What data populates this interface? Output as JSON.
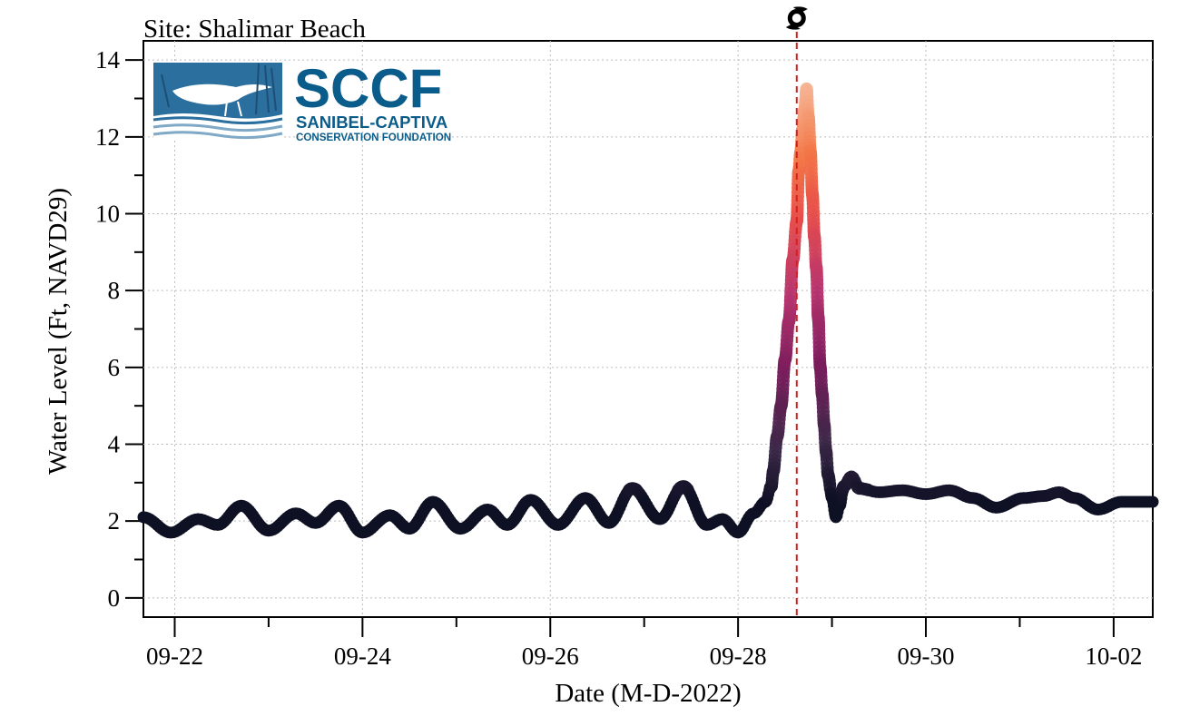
{
  "chart_data": {
    "type": "scatter",
    "title": "Site: Shalimar Beach",
    "xlabel": "Date (M-D-2022)",
    "ylabel": "Water Level (Ft, NAVD29)",
    "xlim": [
      "2022-09-21T16:00",
      "2022-10-02T10:00"
    ],
    "ylim": [
      -0.5,
      14.5
    ],
    "x_tick_labels": [
      "09-22",
      "09-24",
      "09-26",
      "09-28",
      "09-30",
      "10-02"
    ],
    "y_tick_labels": [
      "0",
      "2",
      "4",
      "6",
      "8",
      "10",
      "12",
      "14"
    ],
    "grid": true,
    "color_scale": "water level (dark navy low → purple → pink → orange → peach high)",
    "event_marker": {
      "datetime": "2022-09-28T15:00",
      "style": "red dashed vertical line",
      "icon": "hurricane-icon"
    },
    "series": [
      {
        "points": [
          [
            "2022-09-21T16:00",
            2.1
          ],
          [
            "2022-09-21T23:00",
            1.7
          ],
          [
            "2022-09-22T06:00",
            2.05
          ],
          [
            "2022-09-22T11:00",
            1.9
          ],
          [
            "2022-09-22T17:00",
            2.4
          ],
          [
            "2022-09-23T00:00",
            1.75
          ],
          [
            "2022-09-23T07:00",
            2.2
          ],
          [
            "2022-09-23T12:00",
            1.95
          ],
          [
            "2022-09-23T18:00",
            2.4
          ],
          [
            "2022-09-24T00:00",
            1.7
          ],
          [
            "2022-09-24T07:00",
            2.15
          ],
          [
            "2022-09-24T12:00",
            1.8
          ],
          [
            "2022-09-24T18:00",
            2.5
          ],
          [
            "2022-09-25T01:00",
            1.8
          ],
          [
            "2022-09-25T08:00",
            2.3
          ],
          [
            "2022-09-25T13:00",
            1.9
          ],
          [
            "2022-09-25T19:00",
            2.55
          ],
          [
            "2022-09-26T02:00",
            1.9
          ],
          [
            "2022-09-26T09:00",
            2.6
          ],
          [
            "2022-09-26T15:00",
            1.95
          ],
          [
            "2022-09-26T21:00",
            2.85
          ],
          [
            "2022-09-27T04:00",
            2.05
          ],
          [
            "2022-09-27T10:00",
            2.9
          ],
          [
            "2022-09-27T16:00",
            1.9
          ],
          [
            "2022-09-27T20:00",
            2.05
          ],
          [
            "2022-09-28T00:00",
            1.7
          ],
          [
            "2022-09-28T04:00",
            2.2
          ],
          [
            "2022-09-28T07:00",
            2.5
          ],
          [
            "2022-09-28T08:30",
            2.9
          ],
          [
            "2022-09-28T09:00",
            3.3
          ],
          [
            "2022-09-28T10:00",
            4.2
          ],
          [
            "2022-09-28T11:00",
            5.0
          ],
          [
            "2022-09-28T12:00",
            6.2
          ],
          [
            "2022-09-28T13:00",
            7.2
          ],
          [
            "2022-09-28T14:00",
            8.8
          ],
          [
            "2022-09-28T15:00",
            9.8
          ],
          [
            "2022-09-28T15:30",
            11.1
          ],
          [
            "2022-09-28T16:00",
            11.6
          ],
          [
            "2022-09-28T16:30",
            12.2
          ],
          [
            "2022-09-28T17:00",
            12.7
          ],
          [
            "2022-09-28T17:30",
            13.25
          ],
          [
            "2022-09-28T18:00",
            12.5
          ],
          [
            "2022-09-28T18:30",
            11.6
          ],
          [
            "2022-09-28T19:00",
            10.5
          ],
          [
            "2022-09-28T19:30",
            9.4
          ],
          [
            "2022-09-28T20:00",
            8.6
          ],
          [
            "2022-09-28T20:30",
            7.3
          ],
          [
            "2022-09-28T21:00",
            6.0
          ],
          [
            "2022-09-28T21:30",
            5.3
          ],
          [
            "2022-09-28T22:00",
            4.5
          ],
          [
            "2022-09-28T22:30",
            3.8
          ],
          [
            "2022-09-28T23:00",
            3.2
          ],
          [
            "2022-09-29T00:00",
            2.6
          ],
          [
            "2022-09-29T01:00",
            2.1
          ],
          [
            "2022-09-29T02:00",
            2.4
          ],
          [
            "2022-09-29T03:00",
            2.9
          ],
          [
            "2022-09-29T05:00",
            3.15
          ],
          [
            "2022-09-29T07:00",
            2.85
          ],
          [
            "2022-09-29T12:00",
            2.75
          ],
          [
            "2022-09-29T18:00",
            2.8
          ],
          [
            "2022-09-30T00:00",
            2.7
          ],
          [
            "2022-09-30T06:00",
            2.8
          ],
          [
            "2022-09-30T12:00",
            2.6
          ],
          [
            "2022-09-30T18:00",
            2.35
          ],
          [
            "2022-10-01T01:00",
            2.6
          ],
          [
            "2022-10-01T06:00",
            2.65
          ],
          [
            "2022-10-01T10:00",
            2.75
          ],
          [
            "2022-10-01T14:00",
            2.6
          ],
          [
            "2022-10-01T20:00",
            2.3
          ],
          [
            "2022-10-02T02:00",
            2.5
          ],
          [
            "2022-10-02T10:00",
            2.5
          ]
        ]
      }
    ]
  },
  "logo": {
    "name": "SCCF",
    "line1": "SANIBEL-CAPTIVA",
    "line2": "CONSERVATION FOUNDATION"
  }
}
